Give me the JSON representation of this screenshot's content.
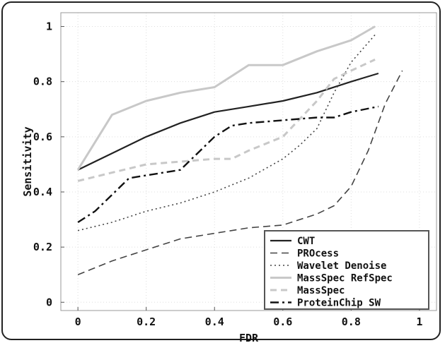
{
  "chart_data": {
    "type": "line",
    "xlabel": "FDR",
    "ylabel": "Sensitivity",
    "xlim": [
      -0.05,
      1.05
    ],
    "ylim": [
      -0.03,
      1.05
    ],
    "xticks": [
      0,
      0.2,
      0.4,
      0.6,
      0.8,
      1
    ],
    "xtick_labels": [
      "0",
      "0.2",
      "0.4",
      "0.6",
      "0.8",
      "1"
    ],
    "yticks": [
      0,
      0.2,
      0.4,
      0.6,
      0.8,
      1
    ],
    "ytick_labels": [
      "0",
      "0.2",
      "0.4",
      "0.6",
      "0.8",
      "1"
    ],
    "grid": true,
    "legend_position": "bottom-right",
    "series": [
      {
        "name": "CWT",
        "color": "#222222",
        "dash": "solid",
        "width": 2.2,
        "x": [
          0,
          0.1,
          0.2,
          0.3,
          0.4,
          0.5,
          0.6,
          0.7,
          0.8,
          0.88
        ],
        "y": [
          0.48,
          0.54,
          0.6,
          0.65,
          0.69,
          0.71,
          0.73,
          0.76,
          0.8,
          0.83
        ]
      },
      {
        "name": "PROcess",
        "color": "#444444",
        "dash": "long-dash",
        "width": 1.6,
        "x": [
          0,
          0.1,
          0.2,
          0.3,
          0.4,
          0.5,
          0.6,
          0.7,
          0.75,
          0.8,
          0.85,
          0.9,
          0.95
        ],
        "y": [
          0.1,
          0.15,
          0.19,
          0.23,
          0.25,
          0.27,
          0.28,
          0.32,
          0.35,
          0.42,
          0.55,
          0.72,
          0.84
        ]
      },
      {
        "name": "Wavelet Denoise",
        "color": "#444444",
        "dash": "dot",
        "width": 1.6,
        "x": [
          0,
          0.1,
          0.2,
          0.3,
          0.4,
          0.5,
          0.6,
          0.65,
          0.7,
          0.75,
          0.8,
          0.87
        ],
        "y": [
          0.26,
          0.29,
          0.33,
          0.36,
          0.4,
          0.45,
          0.52,
          0.57,
          0.63,
          0.76,
          0.87,
          0.97
        ]
      },
      {
        "name": "MassSpec RefSpec",
        "color": "#c8c8c8",
        "dash": "solid",
        "width": 3,
        "x": [
          0,
          0.05,
          0.1,
          0.2,
          0.3,
          0.4,
          0.45,
          0.5,
          0.55,
          0.6,
          0.7,
          0.8,
          0.87
        ],
        "y": [
          0.48,
          0.58,
          0.68,
          0.73,
          0.76,
          0.78,
          0.82,
          0.86,
          0.86,
          0.86,
          0.91,
          0.95,
          1.0
        ]
      },
      {
        "name": "MassSpec",
        "color": "#c8c8c8",
        "dash": "dash",
        "width": 3,
        "x": [
          0,
          0.1,
          0.2,
          0.3,
          0.4,
          0.45,
          0.5,
          0.6,
          0.7,
          0.75,
          0.8,
          0.87
        ],
        "y": [
          0.44,
          0.47,
          0.5,
          0.51,
          0.52,
          0.52,
          0.55,
          0.6,
          0.73,
          0.81,
          0.84,
          0.88
        ]
      },
      {
        "name": "ProteinChip SW",
        "color": "#111111",
        "dash": "dash-dot",
        "width": 2.4,
        "x": [
          0,
          0.05,
          0.1,
          0.15,
          0.2,
          0.3,
          0.4,
          0.45,
          0.5,
          0.6,
          0.7,
          0.75,
          0.8,
          0.88
        ],
        "y": [
          0.29,
          0.33,
          0.39,
          0.45,
          0.46,
          0.48,
          0.6,
          0.64,
          0.65,
          0.66,
          0.67,
          0.67,
          0.69,
          0.71
        ]
      }
    ]
  }
}
